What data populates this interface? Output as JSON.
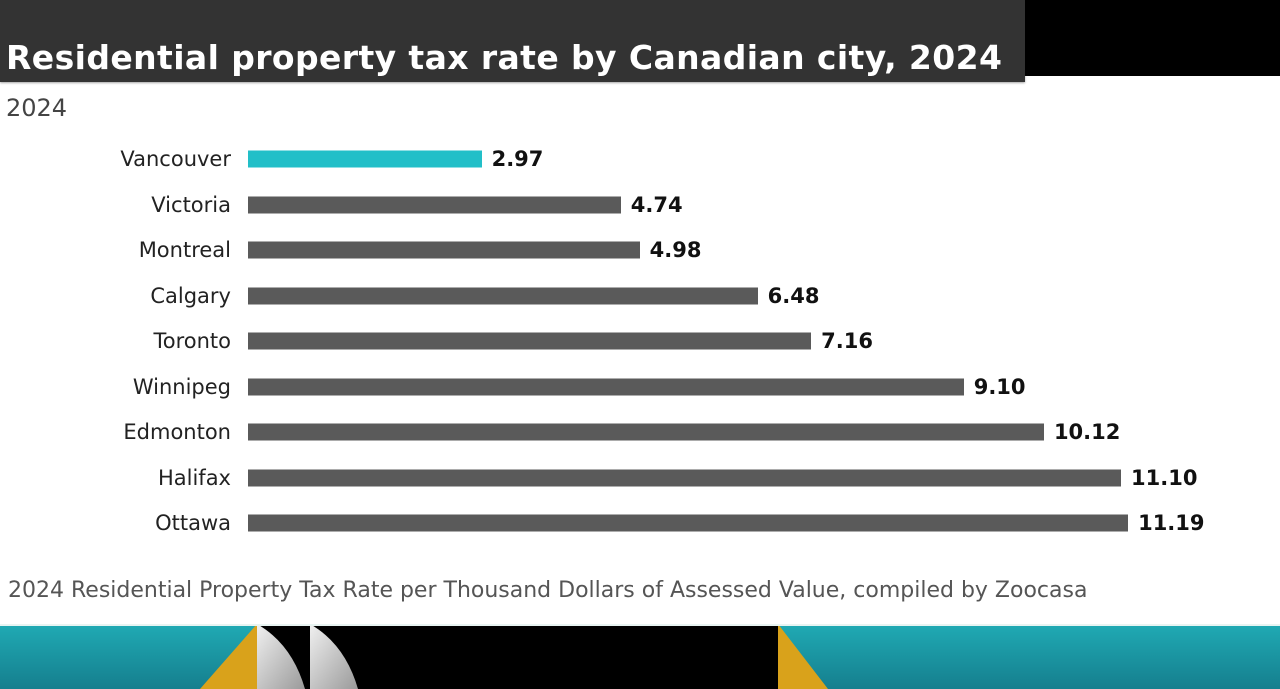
{
  "header": {
    "title": "Residential property tax rate by Canadian city, 2024",
    "subtitle": "2024"
  },
  "footer": {
    "source": "2024 Residential Property Tax Rate per Thousand Dollars of Assessed Value, compiled by Zoocasa"
  },
  "colors": {
    "highlight": "#22bfc8",
    "bar": "#5a5a5a",
    "title_bg": "#333333",
    "band_teal": "#1a9aa8",
    "band_gold": "#d9a21b"
  },
  "chart_data": {
    "type": "bar",
    "orientation": "horizontal",
    "title": "Residential property tax rate by Canadian city, 2024",
    "subtitle": "2024",
    "xlabel": "",
    "ylabel": "",
    "xlim": [
      0,
      11.19
    ],
    "grid": false,
    "legend": "none",
    "highlighted_category": "Vancouver",
    "categories": [
      "Vancouver",
      "Victoria",
      "Montreal",
      "Calgary",
      "Toronto",
      "Winnipeg",
      "Edmonton",
      "Halifax",
      "Ottawa"
    ],
    "values": [
      2.97,
      4.74,
      4.98,
      6.48,
      7.16,
      9.1,
      10.12,
      11.1,
      11.19
    ],
    "value_labels": [
      "2.97",
      "4.74",
      "4.98",
      "6.48",
      "7.16",
      "9.10",
      "10.12",
      "11.10",
      "11.19"
    ],
    "note": "2024 Residential Property Tax Rate per Thousand Dollars of Assessed Value, compiled by Zoocasa"
  }
}
